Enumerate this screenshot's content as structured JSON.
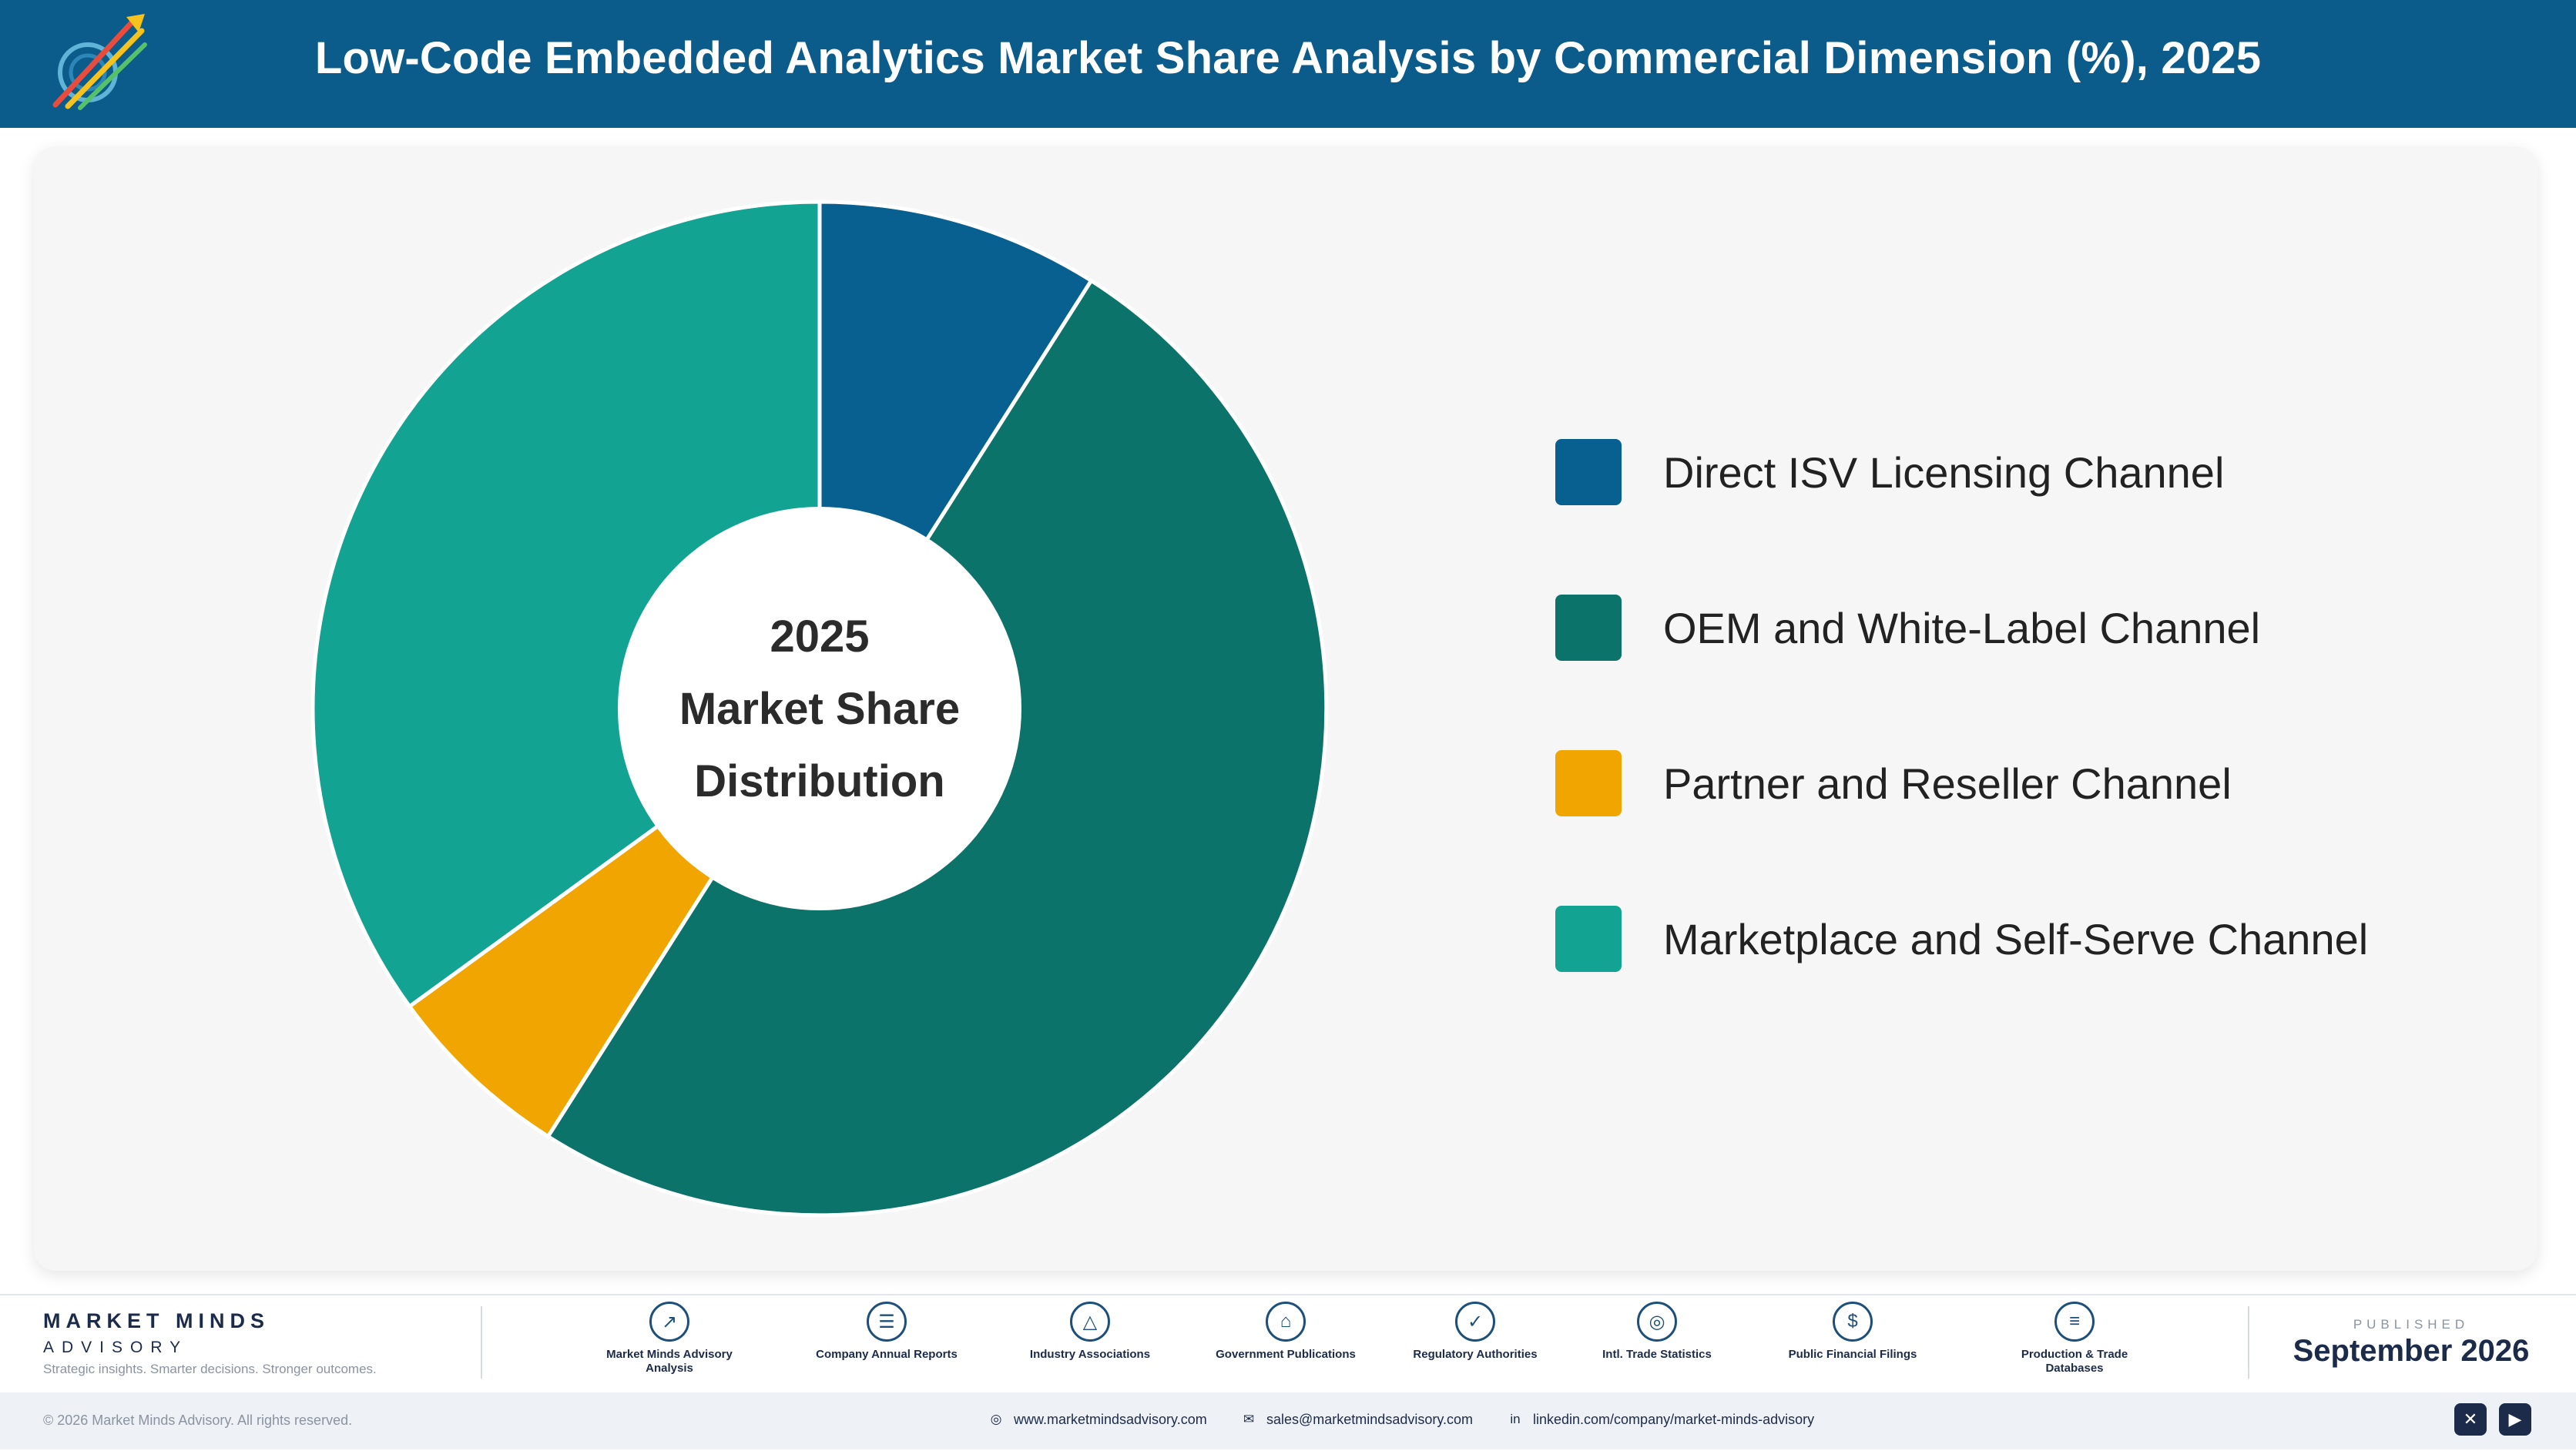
{
  "header": {
    "title": "Low-Code Embedded Analytics Market Share Analysis by Commercial Dimension (%), 2025"
  },
  "chart_data": {
    "type": "pie",
    "donut": true,
    "title": "Low-Code Embedded Analytics Market Share Analysis by Commercial Dimension (%), 2025",
    "center_label": [
      "2025",
      "Market Share",
      "Distribution"
    ],
    "categories": [
      "Direct ISV Licensing Channel",
      "OEM and White-Label Channel",
      "Partner and Reseller Channel",
      "Marketplace and Self-Serve Channel"
    ],
    "values": [
      9,
      50,
      6,
      35
    ],
    "colors": [
      "#07608f",
      "#0c736b",
      "#f0a500",
      "#12a392"
    ],
    "legend_position": "right"
  },
  "footer": {
    "brand_name": "MARKET MINDS",
    "brand_sub": "ADVISORY",
    "tagline": "Strategic insights. Smarter decisions. Stronger outcomes.",
    "sources": [
      {
        "label": "Market Minds Advisory Analysis",
        "icon": "chart-line-icon"
      },
      {
        "label": "Company Annual Reports",
        "icon": "document-icon"
      },
      {
        "label": "Industry Associations",
        "icon": "network-icon"
      },
      {
        "label": "Government Publications",
        "icon": "government-building-icon"
      },
      {
        "label": "Regulatory Authorities",
        "icon": "shield-icon"
      },
      {
        "label": "Intl. Trade Statistics",
        "icon": "globe-icon"
      },
      {
        "label": "Public Financial Filings",
        "icon": "dollar-icon"
      },
      {
        "label": "Production & Trade Databases",
        "icon": "database-icon"
      }
    ],
    "published_label": "PUBLISHED",
    "published_date": "September 2026",
    "copyright": "© 2026 Market Minds Advisory. All rights reserved.",
    "website": "www.marketmindsadvisory.com",
    "email": "sales@marketmindsadvisory.com",
    "linkedin": "linkedin.com/company/market-minds-advisory"
  }
}
